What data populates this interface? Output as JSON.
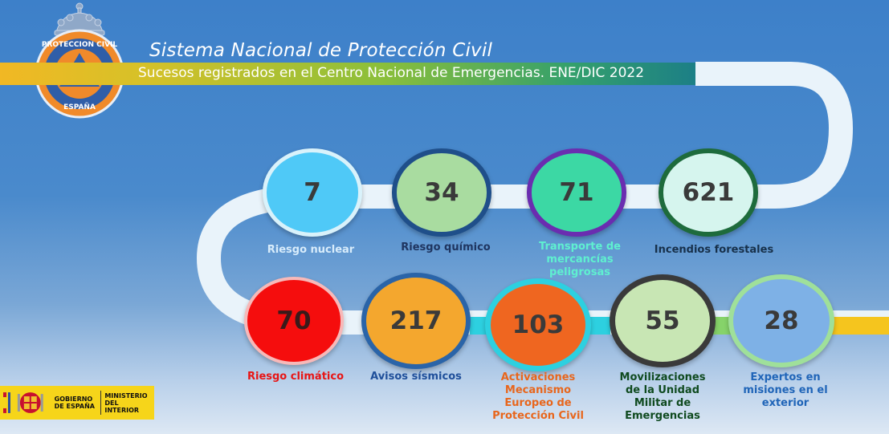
{
  "header": {
    "title": "Sistema Nacional de Protección Civil",
    "subtitle": "Sucesos registrados en el Centro Nacional de Emergencias. ENE/DIC 2022"
  },
  "logo": {
    "ring_top": "PROTECCION CIVIL",
    "ring_bottom": "ESPAÑA"
  },
  "government": {
    "gobierno": "GOBIERNO DE ESPAÑA",
    "ministerio": "MINISTERIO DEL INTERIOR"
  },
  "stats": [
    {
      "value": "7",
      "label": [
        "Riesgo nuclear"
      ],
      "fill": "#4fc9f7",
      "ring": "#d9f2fb",
      "text": "#3a3a3a",
      "label_color": "#d8ecfb"
    },
    {
      "value": "34",
      "label": [
        "Riesgo químico"
      ],
      "fill": "#a9dca0",
      "ring": "#1f4f8a",
      "text": "#3a3a3a",
      "label_color": "#1f3560"
    },
    {
      "value": "71",
      "label": [
        "Transporte de",
        "mercancías",
        "peligrosas"
      ],
      "fill": "#3cd8a4",
      "ring": "#6a2db0",
      "text": "#3a3a3a",
      "label_color": "#5ff0d0"
    },
    {
      "value": "621",
      "label": [
        "Incendios forestales"
      ],
      "fill": "#d6f5ee",
      "ring": "#1e6b3c",
      "text": "#3a3a3a",
      "label_color": "#17304a"
    },
    {
      "value": "70",
      "label": [
        "Riesgo climático"
      ],
      "fill": "#f50d0d",
      "ring": "#f7b9b9",
      "text": "#3a1a1a",
      "label_color": "#e81515"
    },
    {
      "value": "217",
      "label": [
        "Avisos sísmicos"
      ],
      "fill": "#f4a72e",
      "ring": "#2a64a8",
      "text": "#3a3a3a",
      "label_color": "#1f4f9a"
    },
    {
      "value": "103",
      "label": [
        "Activaciones",
        "Mecanismo",
        "Europeo de",
        "Protección Civil"
      ],
      "fill": "#ef6620",
      "ring": "#2dd0e0",
      "text": "#3a3a3a",
      "label_color": "#e8661c"
    },
    {
      "value": "55",
      "label": [
        "Movilizaciones",
        "de la Unidad",
        "Militar de",
        "Emergencias"
      ],
      "fill": "#c8e6b4",
      "ring": "#3a3a3a",
      "text": "#3a3a3a",
      "label_color": "#0f4a1f"
    },
    {
      "value": "28",
      "label": [
        "Expertos en",
        "misiones en el",
        "exterior"
      ],
      "fill": "#7eb1e6",
      "ring": "#9fe09a",
      "text": "#3a3a3a",
      "label_color": "#2065b8"
    }
  ]
}
